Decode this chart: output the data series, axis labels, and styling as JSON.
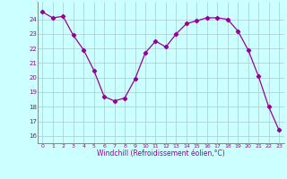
{
  "x": [
    0,
    1,
    2,
    3,
    4,
    5,
    6,
    7,
    8,
    9,
    10,
    11,
    12,
    13,
    14,
    15,
    16,
    17,
    18,
    19,
    20,
    21,
    22,
    23
  ],
  "y": [
    24.5,
    24.1,
    24.2,
    22.9,
    21.9,
    20.5,
    18.7,
    18.4,
    18.6,
    19.9,
    21.7,
    22.5,
    22.1,
    23.0,
    23.7,
    23.9,
    24.1,
    24.1,
    24.0,
    23.2,
    21.9,
    20.1,
    18.0,
    16.4
  ],
  "line_color": "#990099",
  "marker": "D",
  "markersize": 2.2,
  "linewidth": 0.9,
  "bg_color": "#ccffff",
  "grid_color": "#aacccc",
  "xlabel": "Windchill (Refroidissement éolien,°C)",
  "xlabel_color": "#990099",
  "tick_color": "#990099",
  "ylim": [
    15.5,
    25.2
  ],
  "xlim": [
    -0.5,
    23.5
  ],
  "yticks": [
    16,
    17,
    18,
    19,
    20,
    21,
    22,
    23,
    24
  ],
  "xticks": [
    0,
    1,
    2,
    3,
    4,
    5,
    6,
    7,
    8,
    9,
    10,
    11,
    12,
    13,
    14,
    15,
    16,
    17,
    18,
    19,
    20,
    21,
    22,
    23
  ]
}
